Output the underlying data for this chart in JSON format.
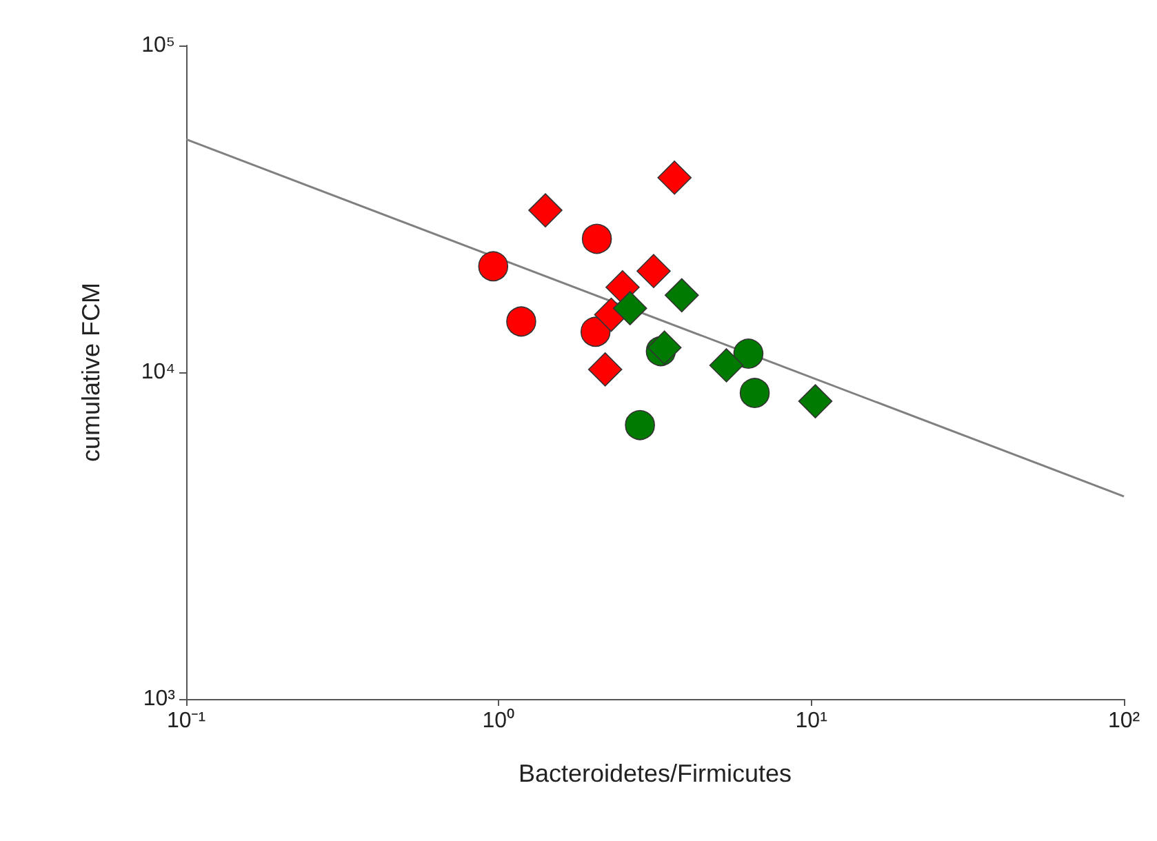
{
  "chart_data": {
    "type": "scatter",
    "xlabel": "Bacteroidetes/Firmicutes",
    "ylabel": "cumulative FCM",
    "log": "xy",
    "grid": false,
    "xlim": [
      0.1,
      100
    ],
    "ylim": [
      1000,
      100000
    ],
    "xticks": [
      {
        "value": 0.1,
        "label": "10⁻¹"
      },
      {
        "value": 1,
        "label": "10⁰"
      },
      {
        "value": 10,
        "label": "10¹"
      },
      {
        "value": 100,
        "label": "10²"
      }
    ],
    "yticks": [
      {
        "value": 1000,
        "label": "10³"
      },
      {
        "value": 10000,
        "label": "10⁴"
      },
      {
        "value": 100000,
        "label": "10⁵"
      }
    ],
    "series": [
      {
        "color": "#ff0000",
        "marker": "circle",
        "x": [
          0.96,
          1.18,
          2.06,
          2.04
        ],
        "values": [
          21100,
          14300,
          25600,
          13300
        ]
      },
      {
        "color": "#ff0000",
        "marker": "diamond",
        "x": [
          1.41,
          3.65,
          3.13,
          2.49,
          2.29,
          2.19
        ],
        "values": [
          31300,
          39400,
          20400,
          18200,
          15000,
          10200
        ]
      },
      {
        "color": "#007a00",
        "marker": "circle",
        "x": [
          3.3,
          6.29,
          6.59,
          2.83
        ],
        "values": [
          11600,
          11400,
          8640,
          6890
        ]
      },
      {
        "color": "#007a00",
        "marker": "diamond",
        "x": [
          2.63,
          3.85,
          3.39,
          5.35,
          10.3
        ],
        "values": [
          15700,
          17200,
          11900,
          10500,
          8150
        ]
      },
      {
        "type": "line",
        "color": "#808080",
        "marker": "none",
        "line_style": "solid",
        "x": [
          0.1,
          100
        ],
        "values": [
          51600,
          4170
        ]
      }
    ]
  }
}
